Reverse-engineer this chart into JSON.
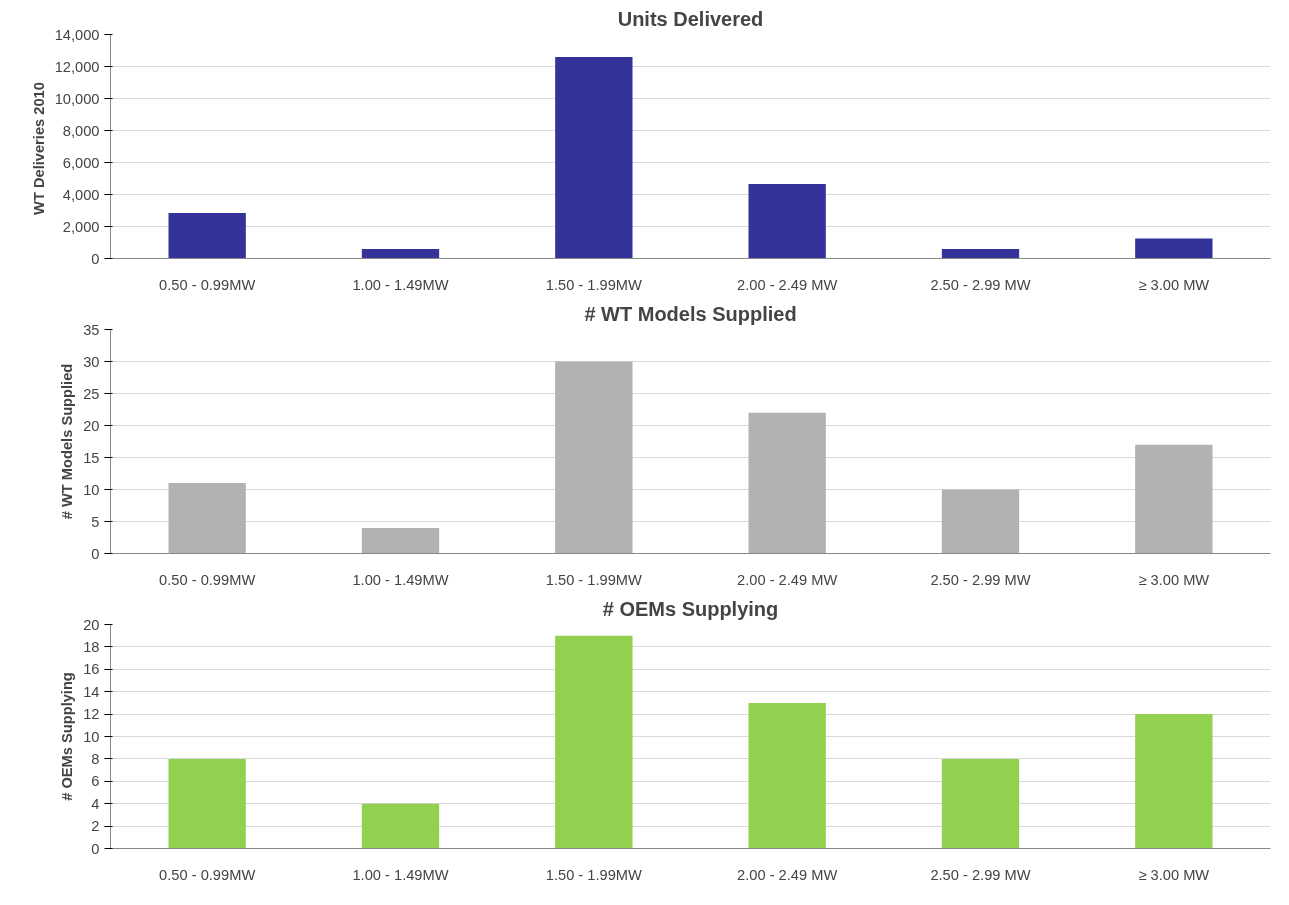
{
  "chart_data": [
    {
      "type": "bar",
      "title": "Units Delivered",
      "ylabel": "WT Deliveries  2010",
      "categories": [
        "0.50 - 0.99MW",
        "1.00 - 1.49MW",
        "1.50 - 1.99MW",
        "2.00 - 2.49 MW",
        "2.50 - 2.99 MW",
        "≥ 3.00 MW"
      ],
      "values": [
        2850,
        600,
        12600,
        4650,
        600,
        1250
      ],
      "color": "#333399",
      "ylim": [
        0,
        14000
      ],
      "yticks": [
        {
          "value": 0,
          "label": "0"
        },
        {
          "value": 2000,
          "label": "2,000"
        },
        {
          "value": 4000,
          "label": "4,000"
        },
        {
          "value": 6000,
          "label": "6,000"
        },
        {
          "value": 8000,
          "label": "8,000"
        },
        {
          "value": 10000,
          "label": "10,000"
        },
        {
          "value": 12000,
          "label": "12,000"
        },
        {
          "value": 14000,
          "label": "14,000"
        }
      ],
      "grid": "y"
    },
    {
      "type": "bar",
      "title": "# WT Models Supplied",
      "ylabel": "# WT Models Supplied",
      "categories": [
        "0.50 - 0.99MW",
        "1.00 - 1.49MW",
        "1.50 - 1.99MW",
        "2.00 - 2.49 MW",
        "2.50 - 2.99 MW",
        "≥ 3.00 MW"
      ],
      "values": [
        11,
        4,
        30,
        22,
        10,
        17
      ],
      "color": "#b2b2b2",
      "ylim": [
        0,
        35
      ],
      "yticks": [
        0,
        5,
        10,
        15,
        20,
        25,
        30,
        35
      ],
      "grid": "y"
    },
    {
      "type": "bar",
      "title": "# OEMs Supplying",
      "ylabel": "# OEMs Supplying",
      "categories": [
        "0.50 - 0.99MW",
        "1.00 - 1.49MW",
        "1.50 - 1.99MW",
        "2.00 - 2.49 MW",
        "2.50 - 2.99 MW",
        "≥ 3.00 MW"
      ],
      "values": [
        8,
        4,
        19,
        13,
        8,
        12
      ],
      "color": "#92d050",
      "ylim": [
        0,
        20
      ],
      "yticks": [
        0,
        2,
        4,
        6,
        8,
        10,
        12,
        14,
        16,
        18,
        20
      ],
      "grid": "y"
    }
  ]
}
